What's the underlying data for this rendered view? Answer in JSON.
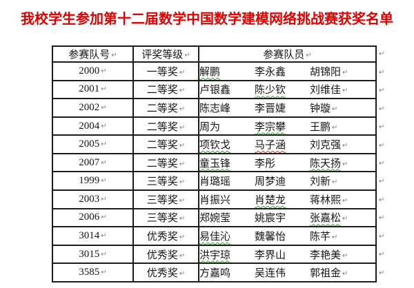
{
  "page": {
    "background": "#ffffff"
  },
  "title": {
    "text": "我校学生参加第十二届数学中国数学建模网络挑战赛获奖名单",
    "color": "#e00000"
  },
  "marks": {
    "paragraph_mark": "↵",
    "color": "#7d7d7d"
  },
  "table": {
    "headers": [
      "参赛队号",
      "评奖等级",
      "参赛队员"
    ],
    "underline_colors": {
      "green": "#21a121",
      "red": "#d93025"
    },
    "rows": [
      {
        "team": "2000",
        "award": "一等奖",
        "members": [
          {
            "name": "解鹏",
            "underline": "green"
          },
          {
            "name": "李永鑫"
          },
          {
            "name": "胡锦阳"
          }
        ]
      },
      {
        "team": "2001",
        "award": "二等奖",
        "members": [
          {
            "name": "卢银鑫"
          },
          {
            "name": "陈少钦",
            "underline": "green"
          },
          {
            "name": "刘维佳"
          }
        ]
      },
      {
        "team": "2002",
        "award": "二等奖",
        "members": [
          {
            "name": "陈志峰"
          },
          {
            "name": "李晋婕"
          },
          {
            "name": "钟璇"
          }
        ]
      },
      {
        "team": "2004",
        "award": "二等奖",
        "members": [
          {
            "name": "周为"
          },
          {
            "name": "李宗攀",
            "underline": "green"
          },
          {
            "name": "王鹏"
          }
        ]
      },
      {
        "team": "2005",
        "award": "二等奖",
        "members": [
          {
            "name": "项钦戈",
            "underline": "green"
          },
          {
            "name": "马子涵",
            "underline": "red"
          },
          {
            "name": "刘克强"
          }
        ]
      },
      {
        "team": "2007",
        "award": "二等奖",
        "members": [
          {
            "name": "童玉锋",
            "underline": "green"
          },
          {
            "name": "李彤"
          },
          {
            "name": "陈天扬",
            "underline": "green"
          }
        ]
      },
      {
        "team": "1999",
        "award": "三等奖",
        "members": [
          {
            "name": "肖璐瑶"
          },
          {
            "name": "周梦迪"
          },
          {
            "name": "刘新"
          }
        ]
      },
      {
        "team": "2003",
        "award": "三等奖",
        "members": [
          {
            "name": "肖振兴"
          },
          {
            "name": "肖楚龙",
            "underline": "green"
          },
          {
            "name": "蒋林熙"
          }
        ]
      },
      {
        "team": "2006",
        "award": "三等奖",
        "members": [
          {
            "name": "郑婉莹"
          },
          {
            "name": "姚宸宇"
          },
          {
            "name": "张嘉松",
            "underline": "green"
          }
        ]
      },
      {
        "team": "3014",
        "award": "优秀奖",
        "members": [
          {
            "name": "易佳沁",
            "underline": "green"
          },
          {
            "name": "魏馨怡"
          },
          {
            "name": "陈芊"
          }
        ]
      },
      {
        "team": "3015",
        "award": "优秀奖",
        "members": [
          {
            "name": "洪宇琼",
            "underline": "green"
          },
          {
            "name": "李界山"
          },
          {
            "name": "李艳美"
          }
        ]
      },
      {
        "team": "3585",
        "award": "优秀奖",
        "members": [
          {
            "name": "方嘉鸣"
          },
          {
            "name": "吴连伟"
          },
          {
            "name": "郭祖金"
          }
        ]
      }
    ]
  }
}
